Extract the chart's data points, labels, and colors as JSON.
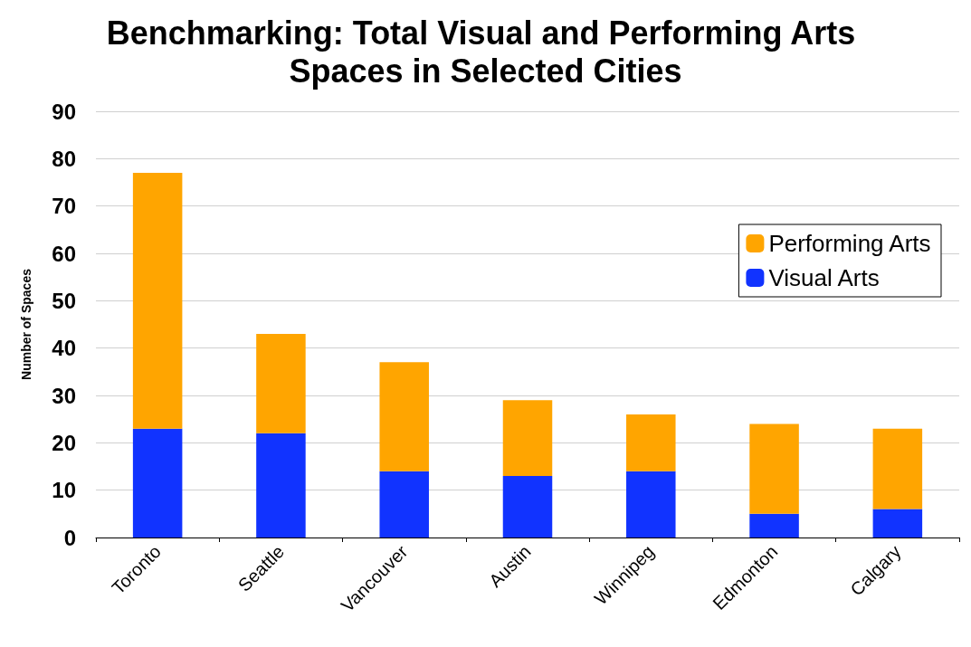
{
  "chart_data": {
    "type": "bar",
    "title": "Benchmarking: Total Visual and Performing Arts Spaces in Selected Cities",
    "ylabel": "Number of Spaces",
    "categories": [
      "Toronto",
      "Seattle",
      "Vancouver",
      "Austin",
      "Winnipeg",
      "Edmonton",
      "Calgary"
    ],
    "series": [
      {
        "name": "Visual Arts",
        "color": "#1133ff",
        "values": [
          23,
          22,
          14,
          13,
          14,
          5,
          6
        ]
      },
      {
        "name": "Performing Arts",
        "color": "#ffa500",
        "values": [
          54,
          21,
          23,
          16,
          12,
          19,
          17
        ]
      }
    ],
    "stacked": true,
    "ylim": [
      0,
      90
    ],
    "yticks": [
      0,
      10,
      20,
      30,
      40,
      50,
      60,
      70,
      80,
      90
    ],
    "grid": "y",
    "legend": "right"
  }
}
